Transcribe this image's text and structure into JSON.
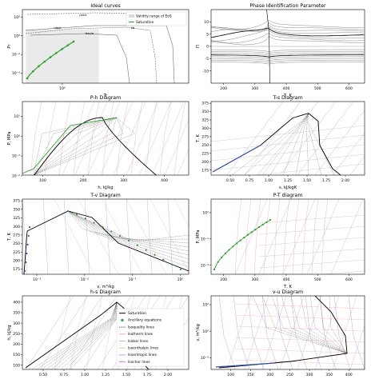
{
  "chart_data": [
    {
      "type": "line",
      "title": "Ideal curves",
      "xlabel": "Tr",
      "ylabel": "Pr",
      "x_scale": "log",
      "y_scale": "log",
      "x_ticks": [
        "10⁰"
      ],
      "y_ticks": [
        "10²",
        "10⁰",
        "10⁻²",
        "10⁻⁴"
      ],
      "legend_placement": "upper-right",
      "legend": [
        "Validity range of EoS",
        "Saturation"
      ],
      "curve_labels": [
        "joule",
        "ideal",
        "zb",
        "boyle"
      ],
      "saturation_points_count": 9,
      "colors": {
        "validity": "#d9d9d9",
        "saturation": "#2ca02c",
        "curves": "#555555"
      }
    },
    {
      "type": "line",
      "title": "Phase Identification Parameter",
      "xlabel": "T, K",
      "ylabel": "Π",
      "xlim": [
        160,
        650
      ],
      "ylim": [
        -15,
        15
      ],
      "x_ticks": [
        "200",
        "300",
        "400",
        "500",
        "600"
      ],
      "y_ticks": [
        "10",
        "5",
        "0",
        "-5",
        "-10"
      ],
      "divergence_at_x": 345
    },
    {
      "type": "line",
      "title": "P-h Diagram",
      "xlabel": "h, kJ/kg",
      "ylabel": "P, MPa",
      "y_scale": "log",
      "xlim": [
        50,
        460
      ],
      "x_ticks": [
        "100",
        "200",
        "300",
        "400"
      ],
      "y_ticks": [
        "10¹",
        "10⁰",
        "10⁻¹",
        "10⁻²"
      ]
    },
    {
      "type": "line",
      "title": "T-s Diagram",
      "xlabel": "s, kJ/kgK",
      "ylabel": "T, K",
      "xlim": [
        0.25,
        2.25
      ],
      "ylim": [
        160,
        380
      ],
      "x_ticks": [
        "0.50",
        "0.75",
        "1.00",
        "1.25",
        "1.50",
        "1.75",
        "2.00"
      ],
      "y_ticks": [
        "375",
        "350",
        "325",
        "300",
        "275",
        "250",
        "225",
        "200",
        "175"
      ],
      "critical_point": {
        "x": 1.52,
        "y": 345
      }
    },
    {
      "type": "line",
      "title": "T-v Diagram",
      "xlabel": "v, m³/kg",
      "ylabel": "T, K",
      "x_scale": "log",
      "xlim": [
        0.0005,
        1.5
      ],
      "ylim": [
        160,
        380
      ],
      "x_ticks": [
        "10⁻³",
        "10⁻²",
        "10⁻¹",
        "10⁰"
      ],
      "y_ticks": [
        "375",
        "350",
        "325",
        "300",
        "275",
        "250",
        "225",
        "200",
        "175"
      ],
      "critical_point": {
        "x": 0.0045,
        "y": 345
      }
    },
    {
      "type": "line",
      "title": "P-T diagram",
      "xlabel": "T, K",
      "ylabel": "P, MPa",
      "y_scale": "log",
      "xlim": [
        160,
        650
      ],
      "x_ticks": [
        "200",
        "300",
        "400",
        "500",
        "600"
      ],
      "y_ticks": [
        "10¹",
        "10⁻¹",
        "10⁻³"
      ]
    },
    {
      "type": "line",
      "title": "h-s Diagram",
      "xlabel": "s, kJ/kgK",
      "ylabel": "h, kJ/kg",
      "xlim": [
        0.25,
        2.25
      ],
      "ylim": [
        80,
        430
      ],
      "x_ticks": [
        "0.50",
        "0.75",
        "1.00",
        "1.25",
        "1.50",
        "1.75",
        "2.00"
      ],
      "y_ticks": [
        "400",
        "350",
        "300",
        "250",
        "200",
        "150",
        "100"
      ],
      "legend_placement": "lower-right",
      "legend": [
        "Saturation",
        "Ancillary equations",
        "Isoquality lines",
        "Isotherm lines",
        "Isobar lines",
        "Isoenthalpic lines",
        "Isoentropic lines",
        "Isochor lines"
      ],
      "colors": {
        "saturation": "#000000",
        "ancillary": "#2ca02c",
        "isoquality": "#555555",
        "isotherm": "#f4a6a6",
        "isobar": "#bbbbbb",
        "isoenthalpic": "#e8c8a0",
        "isoentropic": "#a6a6f4",
        "isochor": "#cc88cc"
      }
    },
    {
      "type": "line",
      "title": "v-u Diagram",
      "xlabel": "u, kJ/kg",
      "ylabel": "v, m³/kg",
      "y_scale": "log",
      "xlim": [
        50,
        440
      ],
      "x_ticks": [
        "100",
        "150",
        "200",
        "250",
        "300",
        "350",
        "400"
      ],
      "y_ticks": [
        "10²",
        "10⁰",
        "10⁻²"
      ]
    }
  ]
}
